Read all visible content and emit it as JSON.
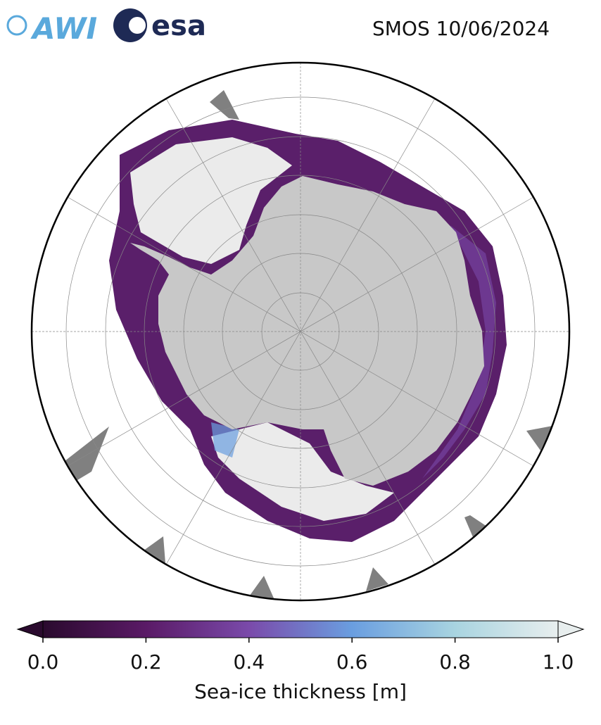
{
  "header": {
    "logos": [
      "AWI",
      "esa"
    ],
    "title": "SMOS 10/06/2024"
  },
  "colorbar": {
    "label": "Sea-ice thickness [m]",
    "lim": [
      0,
      1
    ],
    "ticks": [
      {
        "value": 0,
        "label": "0.0"
      },
      0.2,
      0.4,
      0.6,
      0.8,
      {
        "value": 1,
        "label": "1.0"
      }
    ],
    "colors": [
      "#2a0a2e",
      "#5a1a66",
      "#7a4aaa",
      "#6a9ee0",
      "#a8d4e0",
      "#e8eeee"
    ]
  }
}
